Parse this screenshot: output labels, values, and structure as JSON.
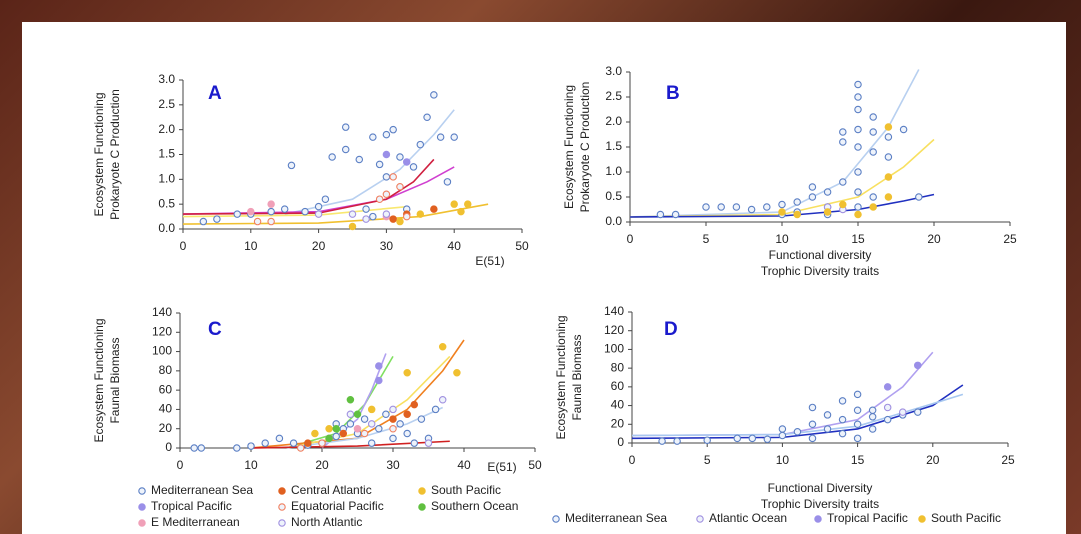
{
  "chart_data": [
    {
      "type": "scatter",
      "panel": "A",
      "ylabel": [
        "Ecosystem Functioning",
        "Prokaryote C Production"
      ],
      "xlabel": "E(51)",
      "xlim": [
        0,
        50
      ],
      "ylim": [
        0,
        3
      ],
      "xticks": [
        0,
        10,
        20,
        30,
        40,
        50
      ],
      "yticks": [
        {
          "value": 0,
          "label": "0.0"
        },
        0.5,
        {
          "value": 1,
          "label": "1.0"
        },
        1.5,
        {
          "value": 2,
          "label": "2.0"
        },
        2.5,
        {
          "value": 3,
          "label": "3.0"
        }
      ],
      "series": [
        {
          "color": "#5b7fc4",
          "marker": "open",
          "x": [
            3,
            5,
            8,
            10,
            13,
            15,
            16,
            18,
            20,
            21,
            22,
            24,
            24,
            26,
            27,
            28,
            29,
            30,
            30,
            31,
            32,
            33,
            34,
            35,
            36,
            37,
            38,
            39,
            40,
            28
          ],
          "values": [
            0.15,
            0.2,
            0.3,
            0.3,
            0.35,
            0.4,
            1.28,
            0.35,
            0.45,
            0.6,
            1.45,
            1.6,
            2.05,
            1.4,
            0.4,
            1.85,
            1.3,
            1.9,
            1.05,
            2.0,
            1.45,
            0.4,
            1.25,
            1.7,
            2.25,
            2.7,
            1.85,
            0.95,
            1.85,
            0.25
          ]
        },
        {
          "color": "#9a8fe8",
          "marker": "filled",
          "x": [
            30,
            33
          ],
          "values": [
            1.5,
            1.35
          ]
        },
        {
          "color": "#f0a0b8",
          "marker": "filled",
          "x": [
            10,
            13,
            30
          ],
          "values": [
            0.35,
            0.5,
            0.25
          ]
        },
        {
          "color": "#e06020",
          "marker": "filled",
          "x": [
            31,
            33,
            37
          ],
          "values": [
            0.2,
            0.3,
            0.4
          ]
        },
        {
          "color": "#f08060",
          "marker": "open",
          "x": [
            11,
            13,
            29,
            30,
            31,
            32,
            33
          ],
          "values": [
            0.15,
            0.15,
            0.6,
            0.7,
            1.05,
            0.85,
            0.25
          ]
        },
        {
          "color": "#a090e0",
          "marker": "open",
          "x": [
            20,
            25,
            27,
            30
          ],
          "values": [
            0.3,
            0.3,
            0.2,
            0.3
          ]
        },
        {
          "color": "#f0c030",
          "marker": "filled",
          "x": [
            25,
            32,
            35,
            40,
            41,
            42
          ],
          "values": [
            0.05,
            0.15,
            0.3,
            0.5,
            0.35,
            0.5
          ]
        },
        {
          "color": "#b8d0f0",
          "fit": true,
          "x": [
            15,
            25,
            32,
            37,
            40
          ],
          "values": [
            0.3,
            0.6,
            1.2,
            1.9,
            2.4
          ]
        },
        {
          "color": "#d040d0",
          "fit": true,
          "x": [
            0,
            20,
            30,
            36,
            40
          ],
          "values": [
            0.3,
            0.35,
            0.6,
            0.95,
            1.25
          ]
        },
        {
          "color": "#d02040",
          "fit": true,
          "x": [
            0,
            20,
            30,
            34,
            37
          ],
          "values": [
            0.3,
            0.32,
            0.6,
            0.95,
            1.4
          ]
        },
        {
          "color": "#f0c030",
          "fit": true,
          "x": [
            0,
            20,
            35,
            45
          ],
          "values": [
            0.1,
            0.12,
            0.25,
            0.5
          ]
        },
        {
          "color": "#f8e870",
          "fit": true,
          "x": [
            0,
            20,
            33
          ],
          "values": [
            0.25,
            0.28,
            0.45
          ]
        }
      ]
    },
    {
      "type": "scatter",
      "panel": "B",
      "ylabel": [
        "Ecosystem Functioning",
        "Prokaryote C Production"
      ],
      "xlabel": [
        "Functional diversity",
        "Trophic Diversity traits"
      ],
      "xlim": [
        0,
        25
      ],
      "ylim": [
        0,
        3
      ],
      "xticks": [
        0,
        5,
        10,
        15,
        20,
        25
      ],
      "yticks": [
        {
          "value": 0,
          "label": "0.0"
        },
        0.5,
        {
          "value": 1,
          "label": "1.0"
        },
        1.5,
        {
          "value": 2,
          "label": "2.0"
        },
        2.5,
        {
          "value": 3,
          "label": "3.0"
        }
      ],
      "series": [
        {
          "color": "#5b7fc4",
          "marker": "open",
          "x": [
            2,
            3,
            5,
            6,
            7,
            8,
            9,
            10,
            11,
            11,
            12,
            12,
            13,
            13,
            14,
            14,
            14,
            15,
            15,
            15,
            15,
            15,
            15,
            15,
            15,
            16,
            16,
            16,
            16,
            17,
            17,
            18,
            19,
            10,
            13
          ],
          "values": [
            0.15,
            0.15,
            0.3,
            0.3,
            0.3,
            0.25,
            0.3,
            0.35,
            0.4,
            0.2,
            0.5,
            0.7,
            0.6,
            0.3,
            0.8,
            1.6,
            1.8,
            2.75,
            2.5,
            2.25,
            1.85,
            1.5,
            1.0,
            0.6,
            0.3,
            2.1,
            1.8,
            1.4,
            0.5,
            1.7,
            1.3,
            1.85,
            0.5,
            0.15,
            0.15
          ]
        },
        {
          "color": "#a090e0",
          "marker": "open",
          "x": [
            13,
            14
          ],
          "values": [
            0.3,
            0.25
          ]
        },
        {
          "color": "#f0c030",
          "marker": "filled",
          "x": [
            10,
            11,
            13,
            14,
            15,
            16,
            17,
            17,
            17
          ],
          "values": [
            0.2,
            0.15,
            0.2,
            0.35,
            0.15,
            0.3,
            0.9,
            1.9,
            0.5
          ]
        },
        {
          "color": "#b8d0f0",
          "fit": true,
          "x": [
            0,
            10,
            14,
            17,
            19
          ],
          "values": [
            0.1,
            0.2,
            0.8,
            1.9,
            3.05
          ]
        },
        {
          "color": "#f8e060",
          "fit": true,
          "x": [
            0,
            10,
            15,
            18,
            20
          ],
          "values": [
            0.1,
            0.15,
            0.5,
            1.1,
            1.65
          ]
        },
        {
          "color": "#2030c0",
          "fit": true,
          "x": [
            0,
            10,
            15,
            18,
            20
          ],
          "values": [
            0.1,
            0.12,
            0.25,
            0.42,
            0.55
          ]
        }
      ]
    },
    {
      "type": "scatter",
      "panel": "C",
      "ylabel": [
        "Ecosystem Functioning",
        "Faunal Biomass"
      ],
      "xlabel": "E(51)",
      "xlim": [
        0,
        50
      ],
      "ylim": [
        0,
        140
      ],
      "xticks": [
        0,
        10,
        20,
        30,
        40,
        50
      ],
      "yticks": [
        0,
        20,
        40,
        60,
        80,
        100,
        120,
        140
      ],
      "series": [
        {
          "name": "Mediterranean Sea",
          "color": "#5b7fc4",
          "marker": "open",
          "x": [
            2,
            3,
            8,
            10,
            12,
            14,
            16,
            18,
            20,
            21,
            22,
            23,
            24,
            25,
            26,
            27,
            28,
            29,
            30,
            31,
            32,
            33,
            34,
            35,
            36,
            22
          ],
          "values": [
            0,
            0,
            0,
            2,
            5,
            10,
            5,
            3,
            5,
            10,
            12,
            20,
            25,
            15,
            30,
            5,
            20,
            35,
            10,
            25,
            15,
            5,
            30,
            10,
            40,
            25
          ]
        },
        {
          "name": "Tropical Pacific",
          "color": "#9a8fe8",
          "marker": "filled",
          "x": [
            28,
            28
          ],
          "values": [
            85,
            70
          ]
        },
        {
          "name": "E Mediterranean",
          "color": "#f0a0b8",
          "marker": "filled",
          "x": [
            21,
            25
          ],
          "values": [
            10,
            20
          ]
        },
        {
          "name": "Central Atlantic",
          "color": "#e06020",
          "marker": "filled",
          "x": [
            18,
            23,
            30,
            32,
            33
          ],
          "values": [
            5,
            15,
            30,
            35,
            45
          ]
        },
        {
          "name": "Equatorial Pacific",
          "color": "#f08060",
          "marker": "open",
          "x": [
            17,
            20,
            26,
            30
          ],
          "values": [
            0,
            5,
            15,
            20
          ]
        },
        {
          "name": "North Atlantic",
          "color": "#a090e0",
          "marker": "open",
          "x": [
            24,
            27,
            30,
            35,
            37
          ],
          "values": [
            35,
            25,
            40,
            5,
            50
          ]
        },
        {
          "name": "South Pacific",
          "color": "#f0c030",
          "marker": "filled",
          "x": [
            19,
            21,
            27,
            32,
            37,
            39
          ],
          "values": [
            15,
            20,
            40,
            78,
            105,
            78
          ]
        },
        {
          "name": "Southern Ocean",
          "color": "#60c040",
          "marker": "filled",
          "x": [
            21,
            22,
            24,
            25
          ],
          "values": [
            10,
            20,
            50,
            35
          ]
        },
        {
          "color": "#80e060",
          "fit": true,
          "x": [
            15,
            22,
            26,
            30
          ],
          "values": [
            0,
            15,
            45,
            95
          ]
        },
        {
          "color": "#b0a0f0",
          "fit": true,
          "x": [
            20,
            25,
            27,
            29
          ],
          "values": [
            0,
            30,
            60,
            98
          ]
        },
        {
          "color": "#f08020",
          "fit": true,
          "x": [
            10,
            25,
            32,
            37,
            40
          ],
          "values": [
            0,
            10,
            40,
            80,
            112
          ]
        },
        {
          "color": "#f8e060",
          "fit": true,
          "x": [
            15,
            25,
            32,
            38
          ],
          "values": [
            0,
            15,
            50,
            95
          ]
        },
        {
          "color": "#b8d0f0",
          "fit": true,
          "x": [
            15,
            25,
            32,
            37
          ],
          "values": [
            0,
            10,
            25,
            42
          ]
        },
        {
          "color": "#d02020",
          "fit": true,
          "x": [
            10,
            25,
            38
          ],
          "values": [
            0,
            2,
            7
          ]
        }
      ]
    },
    {
      "type": "scatter",
      "panel": "D",
      "ylabel": [
        "Ecosystem Functioning",
        "Faunal Biomass"
      ],
      "xlabel": [
        "Functional Diversity",
        "Trophic Diversity traits"
      ],
      "xlim": [
        0,
        25
      ],
      "ylim": [
        0,
        140
      ],
      "xticks": [
        0,
        5,
        10,
        15,
        20,
        25
      ],
      "yticks": [
        0,
        20,
        40,
        60,
        80,
        100,
        120,
        140
      ],
      "series": [
        {
          "name": "Mediterranean Sea",
          "color": "#5b7fc4",
          "marker": "open",
          "x": [
            2,
            3,
            5,
            7,
            8,
            9,
            10,
            10,
            11,
            12,
            12,
            12,
            13,
            13,
            14,
            14,
            14,
            15,
            15,
            15,
            15,
            16,
            16,
            16,
            17,
            18,
            19
          ],
          "values": [
            2,
            2,
            3,
            5,
            5,
            4,
            15,
            8,
            12,
            38,
            20,
            5,
            30,
            15,
            45,
            25,
            10,
            52,
            35,
            20,
            5,
            35,
            28,
            15,
            25,
            30,
            33
          ]
        },
        {
          "name": "Atlantic Ocean",
          "color": "#a090e0",
          "marker": "open",
          "x": [
            17,
            18
          ],
          "values": [
            38,
            33
          ]
        },
        {
          "name": "Tropical Pacific",
          "color": "#9a8fe8",
          "marker": "filled",
          "x": [
            17,
            19
          ],
          "values": [
            60,
            83
          ]
        },
        {
          "name": "South Pacific",
          "color": "#f0c030",
          "marker": "filled",
          "x": [],
          "values": []
        },
        {
          "color": "#b0a0f0",
          "fit": true,
          "x": [
            0,
            10,
            15,
            18,
            20
          ],
          "values": [
            8,
            9,
            25,
            60,
            97
          ]
        },
        {
          "color": "#2030c0",
          "fit": true,
          "x": [
            0,
            10,
            15,
            20,
            22
          ],
          "values": [
            5,
            6,
            15,
            40,
            62
          ]
        },
        {
          "color": "#a8c8f0",
          "fit": true,
          "x": [
            0,
            10,
            15,
            20,
            22
          ],
          "values": [
            8,
            9,
            18,
            42,
            52
          ]
        }
      ]
    }
  ]
}
